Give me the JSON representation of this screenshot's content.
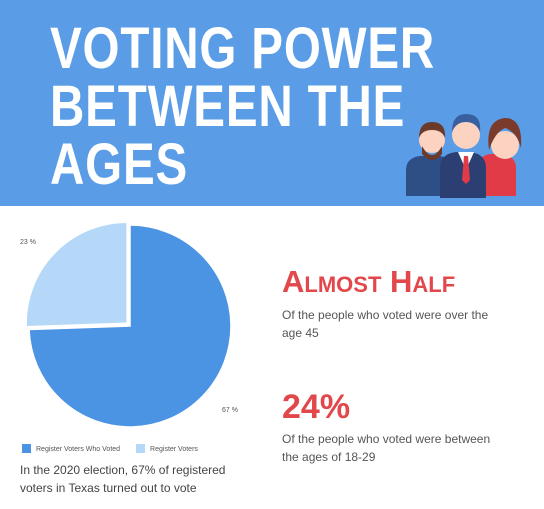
{
  "header": {
    "title_lines": [
      "VOTING POWER",
      "BETWEEN THE",
      "AGES"
    ]
  },
  "chart_data": {
    "type": "pie",
    "categories": [
      "Register Voters Who Voted",
      "Register Voters"
    ],
    "values": [
      67,
      23
    ],
    "value_labels": [
      "67 %",
      "23 %"
    ],
    "colors": [
      "#4a94e3",
      "#b5d8f8"
    ],
    "legend": "bottom",
    "caption": "In the 2020 election, 67% of registered voters in Texas turned out to vote"
  },
  "facts": [
    {
      "headline": "Almost Half",
      "text": "Of the people who voted were over the age 45"
    },
    {
      "headline": "24%",
      "text": "Of the people who voted were between the ages of 18-29"
    }
  ]
}
